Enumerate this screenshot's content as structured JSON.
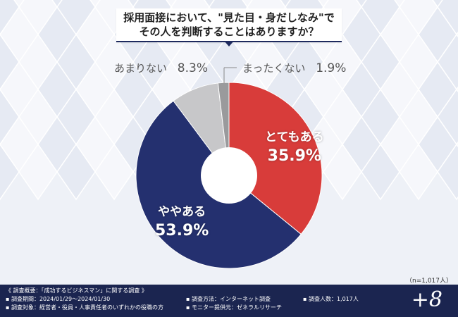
{
  "title": {
    "line1": "採用面接において、\"見た目・身だしなみ\"で",
    "line2": "その人を判断することはありますか？"
  },
  "chart_data": {
    "type": "pie",
    "title": "採用面接において、\"見た目・身だしなみ\"でその人を判断することはありますか？",
    "donut": true,
    "slices": [
      {
        "label": "とてもある",
        "value": 35.9,
        "display": "35.9%",
        "color": "#d83c3a"
      },
      {
        "label": "ややある",
        "value": 53.9,
        "display": "53.9%",
        "color": "#24306f"
      },
      {
        "label": "あまりない",
        "value": 8.3,
        "display": "8.3%",
        "color": "#c7c7c9"
      },
      {
        "label": "まったくない",
        "value": 1.9,
        "display": "1.9%",
        "color": "#9a9a9c"
      }
    ]
  },
  "sample_note": "（n=1,017人）",
  "footer": {
    "summary": "《 調査概要：「成功するビジネスマン」に関する調査 》",
    "period": "▪ 調査期間：2024/01/29～2024/01/30",
    "target": "▪ 調査対象：経営者・役員・人事責任者のいずれかの役職の方",
    "method": "▪ 調査方法：インターネット調査",
    "provider": "▪ モニター提供元：ゼネラルリサーチ",
    "count": "▪ 調査人数：1,017人",
    "brand": "+8"
  },
  "colors": {
    "navy": "#1b2550",
    "red": "#d83c3a",
    "background": "#eef1f7"
  }
}
